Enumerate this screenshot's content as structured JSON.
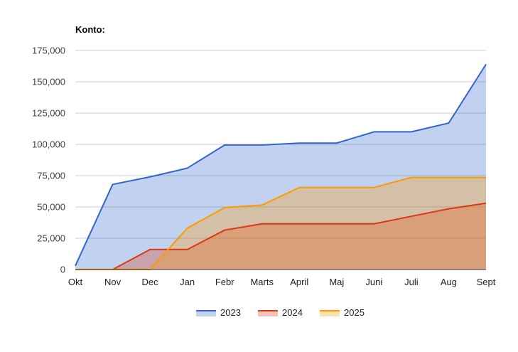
{
  "chart_data": {
    "type": "area",
    "title": "Konto:",
    "categories": [
      "Okt",
      "Nov",
      "Dec",
      "Jan",
      "Febr",
      "Marts",
      "April",
      "Maj",
      "Juni",
      "Juli",
      "Aug",
      "Sept"
    ],
    "ylim": [
      0,
      175000
    ],
    "yticks": [
      0,
      25000,
      50000,
      75000,
      100000,
      125000,
      150000,
      175000
    ],
    "ytick_labels": [
      "0",
      "25,000",
      "50,000",
      "75,000",
      "100,000",
      "125,000",
      "150,000",
      "175,000"
    ],
    "grid": true,
    "legend_position": "bottom",
    "series": [
      {
        "name": "2023",
        "color": "#3366cc",
        "values": [
          3000,
          68000,
          74000,
          81000,
          99500,
          99500,
          101000,
          101000,
          110000,
          110000,
          117000,
          164000
        ]
      },
      {
        "name": "2024",
        "color": "#dc3912",
        "values": [
          0,
          0,
          16000,
          16000,
          31500,
          36500,
          36500,
          36500,
          36500,
          42500,
          48500,
          53000
        ]
      },
      {
        "name": "2025",
        "color": "#ff9900",
        "values": [
          0,
          0,
          0,
          33000,
          49500,
          51500,
          65500,
          65500,
          65500,
          73500,
          73500,
          73500
        ]
      }
    ]
  }
}
